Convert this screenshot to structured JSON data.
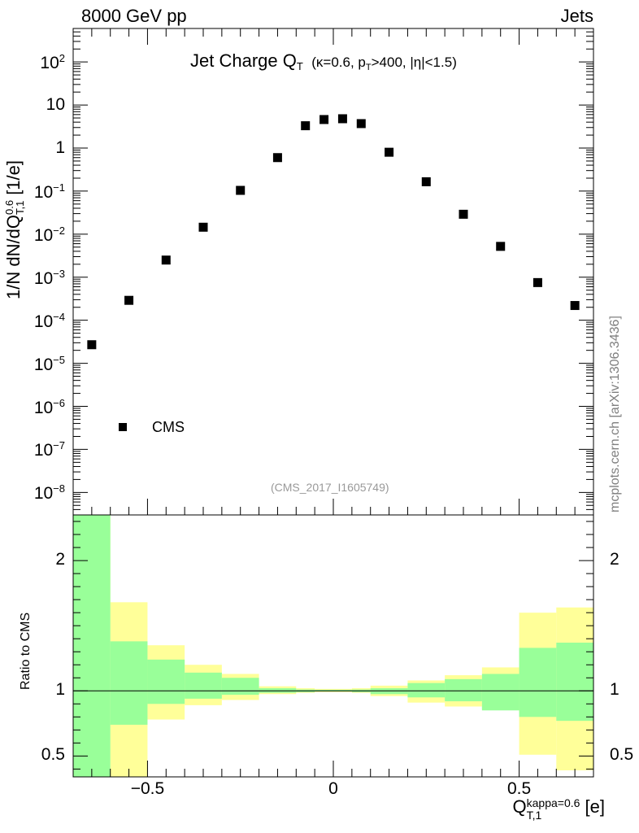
{
  "header": {
    "left": "8000 GeV pp",
    "right": "Jets"
  },
  "side_label": "mcplots.cern.ch [arXiv:1306.3436]",
  "watermark": "(CMS_2017_I1605749)",
  "chart_data": [
    {
      "type": "scatter",
      "panel": "main",
      "title": {
        "main": "Jet Charge Q",
        "main_sub": "T",
        "cuts_kappa": "(κ=0.6, p",
        "cuts_pt_sub": "T",
        "cuts_rest": ">400, |η|<1.5)"
      },
      "ylabel": {
        "prefix": "1/N dN/dQ",
        "sup": "0.6",
        "sub": "T,1",
        "suffix": " [1/e]"
      },
      "yscale": "log",
      "ylim": [
        3e-09,
        600
      ],
      "xlim": [
        -0.7,
        0.7
      ],
      "y_ticks": [
        {
          "v": 1e-08,
          "base": "10",
          "exp": "−8"
        },
        {
          "v": 1e-07,
          "base": "10",
          "exp": "−7"
        },
        {
          "v": 1e-06,
          "base": "10",
          "exp": "−6"
        },
        {
          "v": 1e-05,
          "base": "10",
          "exp": "−5"
        },
        {
          "v": 0.0001,
          "base": "10",
          "exp": "−4"
        },
        {
          "v": 0.001,
          "base": "10",
          "exp": "−3"
        },
        {
          "v": 0.01,
          "base": "10",
          "exp": "−2"
        },
        {
          "v": 0.1,
          "base": "10",
          "exp": "−1"
        },
        {
          "v": 1,
          "base": "1",
          "exp": ""
        },
        {
          "v": 10,
          "base": "10",
          "exp": ""
        },
        {
          "v": 100,
          "base": "10",
          "exp": "2"
        }
      ],
      "legend": {
        "position": "bottom-left",
        "entries": [
          "CMS"
        ]
      },
      "series": [
        {
          "name": "CMS",
          "marker": "square",
          "color": "#000000",
          "x": [
            -0.65,
            -0.55,
            -0.45,
            -0.35,
            -0.25,
            -0.15,
            -0.075,
            -0.025,
            0.025,
            0.075,
            0.15,
            0.25,
            0.35,
            0.45,
            0.55,
            0.65
          ],
          "y": [
            2.7e-05,
            0.00029,
            0.0025,
            0.0145,
            0.104,
            0.6,
            3.3,
            4.6,
            4.8,
            3.7,
            0.8,
            0.165,
            0.029,
            0.0052,
            0.00075,
            0.00022
          ]
        }
      ]
    },
    {
      "type": "area",
      "panel": "ratio",
      "ylabel": "Ratio to CMS",
      "xlabel": {
        "main": "Q",
        "sub": "T,1",
        "sup": "kappa=0.6",
        "suffix": " [e]"
      },
      "xlim": [
        -0.7,
        0.7
      ],
      "ylim": [
        0.34,
        2.35
      ],
      "x_ticks": [
        -0.5,
        0,
        0.5
      ],
      "x_tick_labels": [
        "−0.5",
        "0",
        "0.5"
      ],
      "y_ticks": [
        0.5,
        1,
        2
      ],
      "y_tick_labels": [
        "0.5",
        "1",
        "2"
      ],
      "reference_line": 1,
      "bins": [
        -0.7,
        -0.6,
        -0.5,
        -0.4,
        -0.3,
        -0.2,
        -0.1,
        -0.05,
        0,
        0.05,
        0.1,
        0.2,
        0.3,
        0.4,
        0.5,
        0.6,
        0.7
      ],
      "series": [
        {
          "name": "yellow band",
          "color": "#ffff99",
          "lo": [
            0.0,
            0.0,
            0.78,
            0.89,
            0.93,
            0.975,
            0.985,
            0.99,
            0.99,
            0.985,
            0.96,
            0.91,
            0.88,
            0.86,
            0.51,
            0.39
          ],
          "hi": [
            9.0,
            1.68,
            1.35,
            1.2,
            1.13,
            1.035,
            1.02,
            1.015,
            1.015,
            1.02,
            1.04,
            1.08,
            1.12,
            1.18,
            1.6,
            1.64
          ]
        },
        {
          "name": "green band",
          "color": "#99ff99",
          "lo": [
            0.0,
            0.74,
            0.9,
            0.94,
            0.97,
            0.985,
            0.99,
            0.995,
            0.995,
            0.99,
            0.975,
            0.95,
            0.92,
            0.85,
            0.8,
            0.77
          ],
          "hi": [
            9.0,
            1.38,
            1.24,
            1.14,
            1.1,
            1.02,
            1.01,
            1.008,
            1.008,
            1.01,
            1.02,
            1.06,
            1.09,
            1.13,
            1.33,
            1.37
          ]
        }
      ]
    }
  ]
}
